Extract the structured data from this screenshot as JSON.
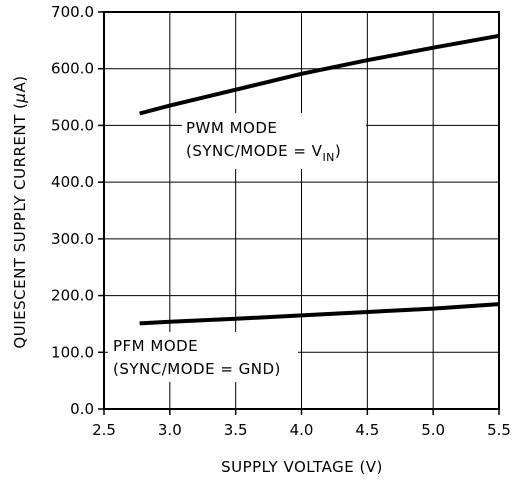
{
  "chart_data": {
    "type": "line",
    "xlabel": "SUPPLY VOLTAGE (V)",
    "ylabel_prefix": "QUIESCENT SUPPLY CURRENT (",
    "ylabel_mu": "μ",
    "ylabel_suffix": "A)",
    "xlim": [
      2.5,
      5.5
    ],
    "ylim": [
      0,
      700
    ],
    "x_ticks": [
      "2.5",
      "3.0",
      "3.5",
      "4.0",
      "4.5",
      "5.0",
      "5.5"
    ],
    "y_ticks": [
      "0.0",
      "100.0",
      "200.0",
      "300.0",
      "400.0",
      "500.0",
      "600.0",
      "700.0"
    ],
    "grid": true,
    "series": [
      {
        "name": "PWM MODE",
        "x": [
          2.77,
          3.0,
          3.5,
          4.0,
          4.5,
          5.0,
          5.5
        ],
        "y": [
          521,
          535,
          563,
          591,
          615,
          637,
          658
        ]
      },
      {
        "name": "PFM MODE",
        "x": [
          2.77,
          3.0,
          3.5,
          4.0,
          4.5,
          5.0,
          5.5
        ],
        "y": [
          151,
          154,
          159,
          165,
          171,
          177,
          185
        ]
      }
    ],
    "annotations": {
      "pwm_line1": "PWM MODE",
      "pwm_line2": "(SYNC/MODE = V",
      "pwm_sub": "IN",
      "pwm_close": ")",
      "pfm_line1": "PFM MODE",
      "pfm_line2": "(SYNC/MODE = GND)"
    }
  }
}
